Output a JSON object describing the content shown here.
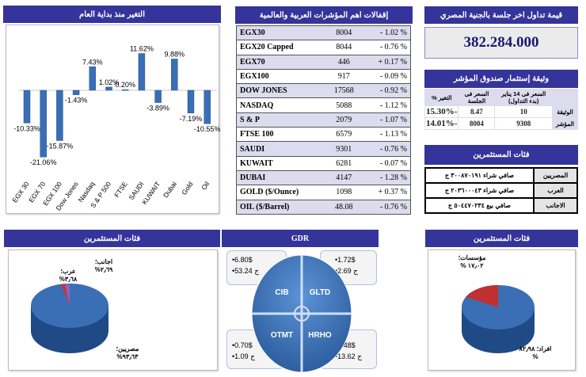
{
  "ytd_panel": {
    "title": "التغير منذ بداية العام"
  },
  "chart_data": {
    "type": "bar",
    "title": "التغير منذ بداية العام",
    "categories": [
      "EGX 30",
      "EGX 70",
      "EGX 100",
      "Dow Jones",
      "Nasdaq",
      "S & P 500",
      "FTSE",
      "SAUDI",
      "KUWAIT",
      "Dubai",
      "Gold",
      "Oil"
    ],
    "values": [
      -10.33,
      -21.06,
      -15.87,
      -1.43,
      7.43,
      1.02,
      0.2,
      11.62,
      -3.89,
      9.88,
      -7.19,
      -10.55
    ],
    "labels": [
      "-10.33%",
      "-21.06%",
      "-15.87%",
      "-1.43%",
      "7.43%",
      "1.02%",
      "0.20%",
      "11.62%",
      "-3.89%",
      "9.88%",
      "-7.19%",
      "-10.55%"
    ],
    "color": "#3a6fb5",
    "grid": false
  },
  "indices": {
    "title": "إقفالات اهم المؤشرات العربية والعالمية",
    "rows": [
      {
        "name": "EGX30",
        "value": "8004",
        "change": "- 1.02 %"
      },
      {
        "name": "EGX20 Capped",
        "value": "8044",
        "change": "- 0.76 %"
      },
      {
        "name": "EGX70",
        "value": "446",
        "change": "+ 0.17 %"
      },
      {
        "name": "EGX100",
        "value": "917",
        "change": "- 0.09 %"
      },
      {
        "name": "DOW JONES",
        "value": "17568",
        "change": "- 0.92 %"
      },
      {
        "name": "NASDAQ",
        "value": "5088",
        "change": "- 1.12 %"
      },
      {
        "name": "S & P",
        "value": "2079",
        "change": "- 1.07 %"
      },
      {
        "name": "FTSE 100",
        "value": "6579",
        "change": "- 1.13 %"
      },
      {
        "name": "SAUDI",
        "value": "9301",
        "change": "- 0.76 %"
      },
      {
        "name": "KUWAIT",
        "value": "6281",
        "change": "- 0.07 %"
      },
      {
        "name": "DUBAI",
        "value": "4147",
        "change": "- 1.28 %"
      },
      {
        "name": "GOLD ($/Ounce)",
        "value": "1098",
        "change": "+ 0.37 %"
      },
      {
        "name": "OIL ($/Barrel)",
        "value": "48.08",
        "change": "- 0.76 %"
      }
    ]
  },
  "turnover": {
    "title": "قيمة تداول اخر جلسة بالجنية المصري",
    "value": "382.284.000"
  },
  "fund": {
    "title": "وثيقة إستثمار صندوق المؤشر",
    "headers": [
      "السعر فى 14 يناير (بدء التداول)",
      "السعر فى الجلسة",
      "التغير %"
    ],
    "rows": [
      {
        "label": "الوثيقة",
        "start": "10",
        "session": "8.47",
        "change": "-15.30%"
      },
      {
        "label": "المؤشر",
        "start": "9308",
        "session": "8004",
        "change": "-14.01%"
      }
    ]
  },
  "investors": {
    "title": "فئات المستثمرين",
    "rows": [
      {
        "label": "المصريين",
        "value": "صافي شراء ٣٠٠٨٧٠١٩١ ج"
      },
      {
        "label": "العرب",
        "value": "صافي شراء ٢٠٣٦٠٠٠٤٣ ج"
      },
      {
        "label": "الاجانب",
        "value": "صافي بيع ٥٠٤٤٧٠٢٣٤ ج"
      }
    ]
  },
  "pie_nationality": {
    "title": "فئات المستثمرين",
    "slices": [
      {
        "label": "مصريين؛ ٩٣٫٦٣%",
        "value": 93.63,
        "color": "#3a6fb5"
      },
      {
        "label": "عرب؛ ٣٫٦٨%",
        "value": 3.68,
        "color": "#d03030"
      },
      {
        "label": "اجانب؛ ٢٫٦٩%",
        "value": 2.69,
        "color": "#7a6ac8"
      }
    ]
  },
  "pie_type": {
    "title": "فئات المستثمرين",
    "slices": [
      {
        "label": "افراد؛ ٨٢٫٩٨ %",
        "value": 82.98,
        "color": "#3a6fb5"
      },
      {
        "label": "مؤسسات؛ ١٧٫٠٢ %",
        "value": 17.02,
        "color": "#c03030"
      }
    ]
  },
  "gdr": {
    "title": "GDR",
    "items": [
      {
        "name": "CIB",
        "usd": "•6.80$",
        "egp": "•53.24 ج"
      },
      {
        "name": "GLTD",
        "usd": "•1.72$",
        "egp": "•2.69 ج"
      },
      {
        "name": "OTMT",
        "usd": "•0.70$",
        "egp": "•1.09 ج"
      },
      {
        "name": "HRHO",
        "usd": "•3.48$",
        "egp": "•13.62 ج"
      }
    ]
  }
}
